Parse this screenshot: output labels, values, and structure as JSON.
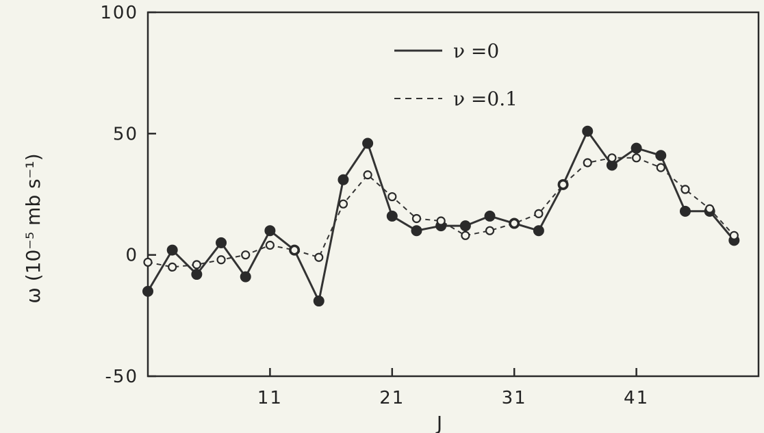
{
  "chart_data": {
    "type": "line",
    "title": "",
    "xlabel": "J",
    "ylabel": "ω  (10⁻⁵ mb s⁻¹)",
    "xlim": [
      1,
      51
    ],
    "ylim": [
      -50,
      100
    ],
    "xticks": [
      11,
      21,
      31,
      41
    ],
    "xtick_labels": [
      "11",
      "21",
      "31",
      "41"
    ],
    "yticks": [
      -50,
      0,
      50,
      100
    ],
    "ytick_labels": [
      "-50",
      "0",
      "50",
      "100"
    ],
    "legend_position": "top-center",
    "grid": false,
    "series": [
      {
        "name": "ν =0",
        "style": "solid",
        "marker": "filled-circle",
        "color": "#333333",
        "x": [
          1,
          3,
          5,
          7,
          9,
          11,
          13,
          15,
          17,
          19,
          21,
          23,
          25,
          27,
          29,
          31,
          33,
          35,
          37,
          39,
          41,
          43,
          45,
          47,
          49
        ],
        "y": [
          -15,
          2,
          -8,
          5,
          -9,
          10,
          2,
          -19,
          31,
          46,
          16,
          10,
          12,
          12,
          16,
          13,
          10,
          29,
          51,
          37,
          44,
          41,
          18,
          18,
          6
        ]
      },
      {
        "name": "ν =0.1",
        "style": "dashed",
        "marker": "open-circle",
        "color": "#333333",
        "x": [
          1,
          3,
          5,
          7,
          9,
          11,
          13,
          15,
          17,
          19,
          21,
          23,
          25,
          27,
          29,
          31,
          33,
          35,
          37,
          39,
          41,
          43,
          45,
          47,
          49
        ],
        "y": [
          -3,
          -5,
          -4,
          -2,
          0,
          4,
          2,
          -1,
          21,
          33,
          24,
          15,
          14,
          8,
          10,
          13,
          17,
          29,
          38,
          40,
          40,
          36,
          27,
          19,
          8
        ]
      }
    ]
  }
}
